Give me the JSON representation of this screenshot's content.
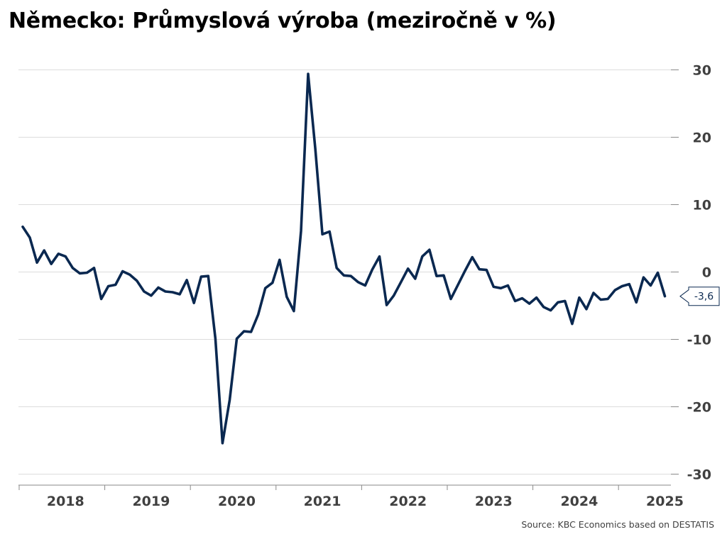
{
  "chart_data": {
    "type": "line",
    "title": "Německo: Průmyslová výroba (meziročně v %)",
    "source": "Source: KBC Economics based on DESTATIS",
    "xlabel": "",
    "ylabel": "",
    "ylim": [
      -30,
      30
    ],
    "yticks": [
      -30,
      -20,
      -10,
      0,
      10,
      20,
      30
    ],
    "ytick_labels": [
      "-30",
      "-20",
      "-10",
      "0",
      "10",
      "20",
      "30"
    ],
    "xtick_labels": [
      "2018",
      "2019",
      "2020",
      "2021",
      "2022",
      "2023",
      "2024",
      "2025"
    ],
    "grid": true,
    "y_axis_position": "right",
    "line_color": "#0a2850",
    "last_value_label": "-3,6",
    "series": [
      {
        "x": [
          "2018-01",
          "2018-02",
          "2018-03",
          "2018-04",
          "2018-05",
          "2018-06",
          "2018-07",
          "2018-08",
          "2018-09",
          "2018-10",
          "2018-11",
          "2018-12",
          "2019-01",
          "2019-02",
          "2019-03",
          "2019-04",
          "2019-05",
          "2019-06",
          "2019-07",
          "2019-08",
          "2019-09",
          "2019-10",
          "2019-11",
          "2019-12",
          "2020-01",
          "2020-02",
          "2020-03",
          "2020-04",
          "2020-05",
          "2020-06",
          "2020-07",
          "2020-08",
          "2020-09",
          "2020-10",
          "2020-11",
          "2020-12",
          "2021-01",
          "2021-02",
          "2021-03",
          "2021-04",
          "2021-05",
          "2021-06",
          "2021-07",
          "2021-08",
          "2021-09",
          "2021-10",
          "2021-11",
          "2021-12",
          "2022-01",
          "2022-02",
          "2022-03",
          "2022-04",
          "2022-05",
          "2022-06",
          "2022-07",
          "2022-08",
          "2022-09",
          "2022-10",
          "2022-11",
          "2022-12",
          "2023-01",
          "2023-02",
          "2023-03",
          "2023-04",
          "2023-05",
          "2023-06",
          "2023-07",
          "2023-08",
          "2023-09",
          "2023-10",
          "2023-11",
          "2023-12",
          "2024-01",
          "2024-02",
          "2024-03",
          "2024-04",
          "2024-05",
          "2024-06",
          "2024-07",
          "2024-08",
          "2024-09",
          "2024-10",
          "2024-11",
          "2024-12",
          "2025-01",
          "2025-02",
          "2025-03",
          "2025-04",
          "2025-05",
          "2025-06",
          "2025-07"
        ],
        "values": [
          6.7,
          5.1,
          1.4,
          3.2,
          1.2,
          2.7,
          2.3,
          0.6,
          -0.2,
          -0.1,
          0.6,
          -4.0,
          -2.1,
          -1.9,
          0.1,
          -0.4,
          -1.3,
          -2.9,
          -3.5,
          -2.3,
          -2.9,
          -3.0,
          -3.3,
          -1.2,
          -4.6,
          -0.7,
          -0.6,
          -9.9,
          -25.4,
          -19.0,
          -9.9,
          -8.8,
          -8.9,
          -6.3,
          -2.4,
          -1.6,
          1.8,
          -3.7,
          -5.8,
          6.1,
          29.4,
          18.3,
          5.6,
          6.0,
          0.6,
          -0.5,
          -0.6,
          -1.5,
          -2.0,
          0.4,
          2.3,
          -4.9,
          -3.5,
          -1.5,
          0.5,
          -1.0,
          2.3,
          3.3,
          -0.6,
          -0.5,
          -4.0,
          -1.9,
          0.2,
          2.2,
          0.4,
          0.3,
          -2.2,
          -2.4,
          -2.0,
          -4.3,
          -3.9,
          -4.7,
          -3.8,
          -5.2,
          -5.7,
          -4.5,
          -4.3,
          -7.7,
          -3.8,
          -5.5,
          -3.1,
          -4.1,
          -4.0,
          -2.7,
          -2.1,
          -1.8,
          -4.5,
          -0.8,
          -2.0,
          -0.1,
          -3.6
        ]
      }
    ]
  }
}
